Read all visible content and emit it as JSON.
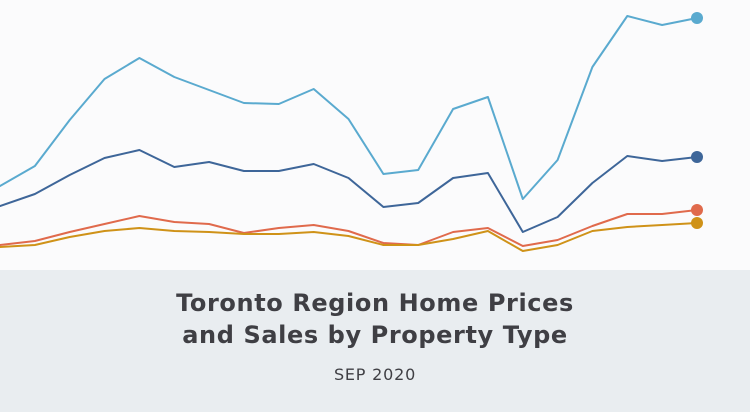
{
  "caption": {
    "title_line1": "Toronto Region Home Prices",
    "title_line2": "and Sales by Property Type",
    "subtitle": "SEP 2020"
  },
  "chart_data": {
    "type": "line",
    "title": "Toronto Region Home Prices and Sales by Property Type",
    "subtitle": "SEP 2020",
    "xlabel": "",
    "ylabel": "",
    "grid": false,
    "axes_visible": false,
    "legend": "none",
    "x": [
      0,
      1,
      2,
      3,
      4,
      5,
      6,
      7,
      8,
      9,
      10,
      11,
      12,
      13,
      14,
      15,
      16,
      17,
      18,
      19,
      20
    ],
    "ylim": [
      0,
      270
    ],
    "series": [
      {
        "color": "#5aaacf",
        "values": [
          84,
          104,
          150,
          191,
          212,
          193,
          180,
          167,
          166,
          181,
          151,
          96,
          100,
          161,
          173,
          71,
          110,
          203,
          254,
          245,
          252
        ],
        "end_marker": true
      },
      {
        "color": "#3e6699",
        "values": [
          64,
          76,
          95,
          112,
          120,
          103,
          108,
          99,
          99,
          106,
          92,
          63,
          67,
          92,
          97,
          38,
          53,
          87,
          114,
          109,
          113
        ],
        "end_marker": true
      },
      {
        "color": "#e06a4c",
        "values": [
          25,
          29,
          38,
          46,
          54,
          48,
          46,
          37,
          42,
          45,
          39,
          27,
          25,
          38,
          42,
          24,
          30,
          44,
          56,
          56,
          60
        ],
        "end_marker": true
      },
      {
        "color": "#cf9218",
        "values": [
          23,
          25,
          33,
          39,
          42,
          39,
          38,
          36,
          36,
          38,
          34,
          25,
          25,
          31,
          39,
          19,
          25,
          39,
          43,
          45,
          47
        ],
        "end_marker": true
      }
    ]
  }
}
